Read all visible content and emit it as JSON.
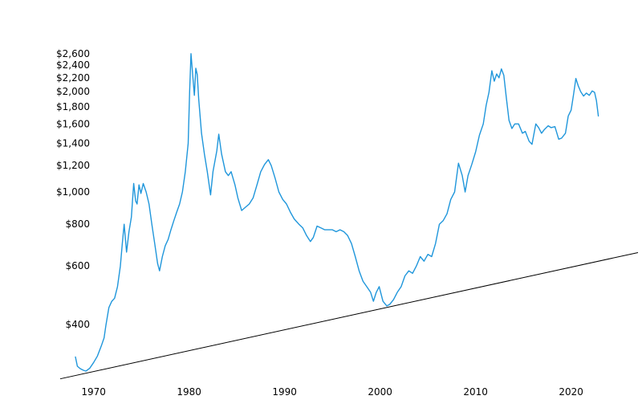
{
  "chart_data": {
    "type": "line",
    "yscale": "log",
    "grid": false,
    "legend": "none",
    "title": "",
    "xlabel": "",
    "ylabel": "",
    "xlim": [
      1966.5,
      2027.0
    ],
    "ylim": [
      270,
      2700
    ],
    "x_ticks": [
      {
        "value": 1970,
        "label": "1970"
      },
      {
        "value": 1980,
        "label": "1980"
      },
      {
        "value": 1990,
        "label": "1990"
      },
      {
        "value": 2000,
        "label": "2000"
      },
      {
        "value": 2010,
        "label": "2010"
      },
      {
        "value": 2020,
        "label": "2020"
      }
    ],
    "y_ticks": [
      {
        "value": 400,
        "label": "$400"
      },
      {
        "value": 600,
        "label": "$600"
      },
      {
        "value": 800,
        "label": "$800"
      },
      {
        "value": 1000,
        "label": "$1,000"
      },
      {
        "value": 1200,
        "label": "$1,200"
      },
      {
        "value": 1400,
        "label": "$1,400"
      },
      {
        "value": 1600,
        "label": "$1,600"
      },
      {
        "value": 1800,
        "label": "$1,800"
      },
      {
        "value": 2000,
        "label": "$2,000"
      },
      {
        "value": 2200,
        "label": "$2,200"
      },
      {
        "value": 2400,
        "label": "$2,400"
      },
      {
        "value": 2600,
        "label": "$2,600"
      }
    ],
    "series": [
      {
        "color": "#1f96db",
        "points": [
          [
            1968.1,
            320
          ],
          [
            1968.3,
            300
          ],
          [
            1968.6,
            295
          ],
          [
            1968.9,
            292
          ],
          [
            1969.2,
            290
          ],
          [
            1969.6,
            296
          ],
          [
            1970.0,
            308
          ],
          [
            1970.4,
            322
          ],
          [
            1970.8,
            345
          ],
          [
            1971.1,
            365
          ],
          [
            1971.3,
            400
          ],
          [
            1971.6,
            450
          ],
          [
            1971.9,
            470
          ],
          [
            1972.2,
            480
          ],
          [
            1972.5,
            520
          ],
          [
            1972.8,
            600
          ],
          [
            1973.0,
            700
          ],
          [
            1973.2,
            800
          ],
          [
            1973.45,
            660
          ],
          [
            1973.7,
            760
          ],
          [
            1973.95,
            840
          ],
          [
            1974.2,
            1060
          ],
          [
            1974.4,
            940
          ],
          [
            1974.55,
            920
          ],
          [
            1974.75,
            1050
          ],
          [
            1974.95,
            990
          ],
          [
            1975.2,
            1060
          ],
          [
            1975.5,
            1000
          ],
          [
            1975.8,
            920
          ],
          [
            1976.1,
            800
          ],
          [
            1976.4,
            700
          ],
          [
            1976.7,
            610
          ],
          [
            1976.9,
            580
          ],
          [
            1977.2,
            640
          ],
          [
            1977.5,
            690
          ],
          [
            1977.8,
            720
          ],
          [
            1978.1,
            770
          ],
          [
            1978.4,
            820
          ],
          [
            1978.7,
            870
          ],
          [
            1979.0,
            920
          ],
          [
            1979.3,
            1000
          ],
          [
            1979.6,
            1150
          ],
          [
            1979.9,
            1400
          ],
          [
            1980.05,
            2000
          ],
          [
            1980.2,
            2600
          ],
          [
            1980.4,
            2200
          ],
          [
            1980.55,
            1950
          ],
          [
            1980.7,
            2350
          ],
          [
            1980.85,
            2250
          ],
          [
            1981.0,
            1900
          ],
          [
            1981.3,
            1500
          ],
          [
            1981.6,
            1300
          ],
          [
            1981.9,
            1150
          ],
          [
            1982.25,
            980
          ],
          [
            1982.5,
            1150
          ],
          [
            1982.9,
            1330
          ],
          [
            1983.1,
            1490
          ],
          [
            1983.4,
            1300
          ],
          [
            1983.8,
            1150
          ],
          [
            1984.1,
            1120
          ],
          [
            1984.4,
            1150
          ],
          [
            1984.8,
            1050
          ],
          [
            1985.1,
            960
          ],
          [
            1985.5,
            880
          ],
          [
            1985.9,
            900
          ],
          [
            1986.3,
            920
          ],
          [
            1986.7,
            960
          ],
          [
            1987.1,
            1050
          ],
          [
            1987.5,
            1150
          ],
          [
            1987.9,
            1210
          ],
          [
            1988.3,
            1250
          ],
          [
            1988.6,
            1200
          ],
          [
            1989.0,
            1100
          ],
          [
            1989.4,
            1000
          ],
          [
            1989.8,
            950
          ],
          [
            1990.2,
            920
          ],
          [
            1990.6,
            870
          ],
          [
            1991.0,
            830
          ],
          [
            1991.5,
            800
          ],
          [
            1991.9,
            780
          ],
          [
            1992.3,
            740
          ],
          [
            1992.7,
            710
          ],
          [
            1993.0,
            730
          ],
          [
            1993.4,
            790
          ],
          [
            1993.8,
            780
          ],
          [
            1994.2,
            770
          ],
          [
            1994.6,
            770
          ],
          [
            1995.0,
            770
          ],
          [
            1995.4,
            760
          ],
          [
            1995.8,
            770
          ],
          [
            1996.2,
            760
          ],
          [
            1996.6,
            740
          ],
          [
            1997.0,
            700
          ],
          [
            1997.4,
            640
          ],
          [
            1997.8,
            580
          ],
          [
            1998.2,
            540
          ],
          [
            1998.6,
            520
          ],
          [
            1999.0,
            500
          ],
          [
            1999.3,
            470
          ],
          [
            1999.6,
            500
          ],
          [
            1999.9,
            520
          ],
          [
            2000.3,
            470
          ],
          [
            2000.7,
            455
          ],
          [
            2001.0,
            460
          ],
          [
            2001.4,
            475
          ],
          [
            2001.8,
            500
          ],
          [
            2002.2,
            520
          ],
          [
            2002.6,
            560
          ],
          [
            2003.0,
            580
          ],
          [
            2003.4,
            570
          ],
          [
            2003.8,
            600
          ],
          [
            2004.2,
            640
          ],
          [
            2004.6,
            620
          ],
          [
            2005.0,
            650
          ],
          [
            2005.4,
            640
          ],
          [
            2005.8,
            700
          ],
          [
            2006.2,
            800
          ],
          [
            2006.6,
            820
          ],
          [
            2007.0,
            860
          ],
          [
            2007.4,
            950
          ],
          [
            2007.8,
            1000
          ],
          [
            2008.2,
            1220
          ],
          [
            2008.6,
            1120
          ],
          [
            2008.9,
            1000
          ],
          [
            2009.2,
            1120
          ],
          [
            2009.6,
            1210
          ],
          [
            2010.0,
            1320
          ],
          [
            2010.4,
            1480
          ],
          [
            2010.8,
            1600
          ],
          [
            2011.1,
            1820
          ],
          [
            2011.4,
            1990
          ],
          [
            2011.7,
            2310
          ],
          [
            2011.95,
            2150
          ],
          [
            2012.2,
            2260
          ],
          [
            2012.45,
            2200
          ],
          [
            2012.7,
            2340
          ],
          [
            2012.95,
            2240
          ],
          [
            2013.2,
            1930
          ],
          [
            2013.5,
            1640
          ],
          [
            2013.8,
            1550
          ],
          [
            2014.1,
            1600
          ],
          [
            2014.5,
            1600
          ],
          [
            2014.9,
            1500
          ],
          [
            2015.2,
            1520
          ],
          [
            2015.6,
            1420
          ],
          [
            2015.9,
            1390
          ],
          [
            2016.3,
            1600
          ],
          [
            2016.6,
            1560
          ],
          [
            2016.9,
            1500
          ],
          [
            2017.2,
            1540
          ],
          [
            2017.6,
            1580
          ],
          [
            2017.9,
            1560
          ],
          [
            2018.3,
            1570
          ],
          [
            2018.7,
            1440
          ],
          [
            2019.0,
            1450
          ],
          [
            2019.4,
            1500
          ],
          [
            2019.7,
            1690
          ],
          [
            2020.0,
            1760
          ],
          [
            2020.25,
            1960
          ],
          [
            2020.5,
            2190
          ],
          [
            2020.75,
            2080
          ],
          [
            2021.0,
            2000
          ],
          [
            2021.3,
            1940
          ],
          [
            2021.6,
            1980
          ],
          [
            2021.9,
            1950
          ],
          [
            2022.2,
            2010
          ],
          [
            2022.45,
            1990
          ],
          [
            2022.65,
            1880
          ],
          [
            2022.85,
            1690
          ]
        ]
      }
    ],
    "annotations": [
      {
        "type": "trend-line",
        "color": "#000000",
        "from": [
          1966.5,
          275
        ],
        "to": [
          2027.0,
          658
        ]
      }
    ]
  }
}
